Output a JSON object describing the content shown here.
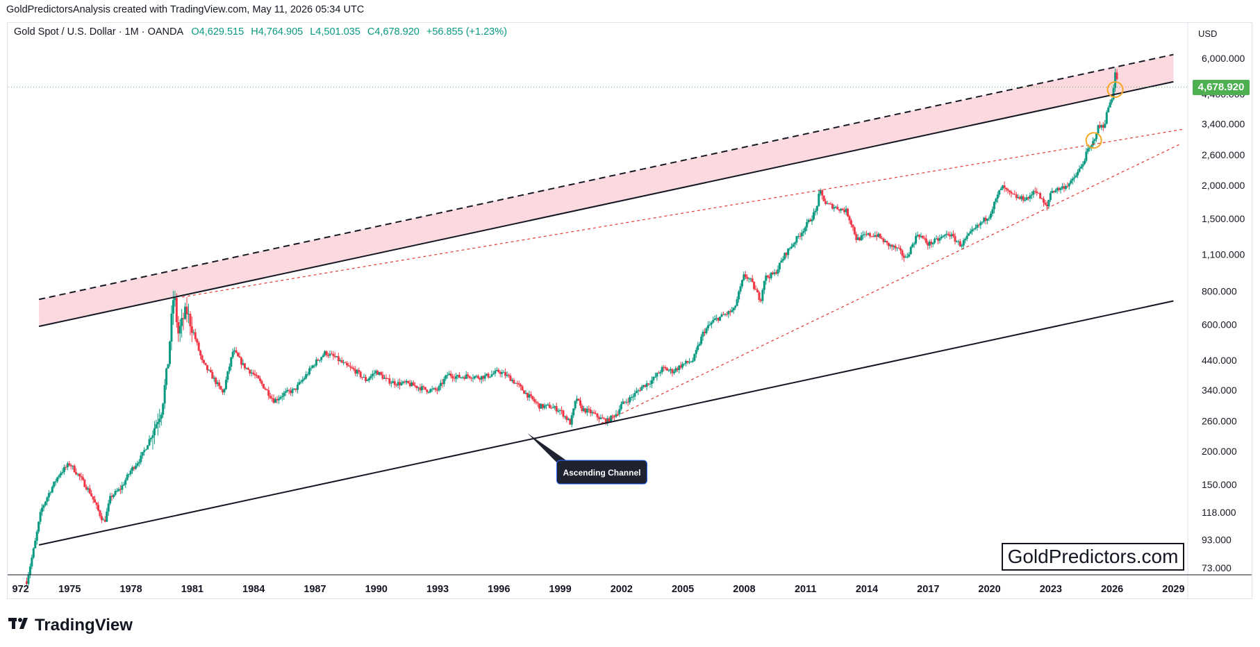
{
  "header": {
    "attribution": "GoldPredictorsAnalysis created with TradingView.com, May 11, 2026 05:34 UTC"
  },
  "legend": {
    "symbol": "Gold Spot / U.S. Dollar · 1M · OANDA",
    "open": "O4,629.515",
    "high": "H4,764.905",
    "low": "L4,501.035",
    "close": "C4,678.920",
    "change": "+56.855 (+1.23%)"
  },
  "price_scale": {
    "currency": "USD",
    "last_price": "4,678.920",
    "ticks": [
      "6,000.000",
      "4,400.000",
      "3,400.000",
      "2,600.000",
      "2,000.000",
      "1,500.000",
      "1,100.000",
      "800.000",
      "600.000",
      "440.000",
      "340.000",
      "260.000",
      "200.000",
      "150.000",
      "118.000",
      "93.000",
      "73.000"
    ]
  },
  "time_scale": {
    "ticks": [
      "972",
      "1975",
      "1978",
      "1981",
      "1984",
      "1987",
      "1990",
      "1993",
      "1996",
      "1999",
      "2002",
      "2005",
      "2008",
      "2011",
      "2014",
      "2017",
      "2020",
      "2023",
      "2026",
      "2029"
    ]
  },
  "annotation": {
    "callout": "Ascending Channel"
  },
  "watermark": "GoldPredictors.com",
  "brand": "TradingView",
  "colors": {
    "up": "#089981",
    "down": "#f23645",
    "candle": "#131722",
    "band": "#fcd9de",
    "trend_red": "#e53935",
    "circle": "#f5a623",
    "badge": "#4caf50"
  },
  "chart_data": {
    "type": "candlestick-line",
    "title": "Gold Spot / U.S. Dollar · 1M · OANDA",
    "xlabel": "",
    "ylabel": "",
    "y_scale": "log",
    "x_range": [
      1972,
      2029.7
    ],
    "y_range": [
      70,
      6500
    ],
    "last_price": 4678.92,
    "series": [
      {
        "name": "Gold Spot / U.S. Dollar",
        "points": [
          [
            1972.9,
            65
          ],
          [
            1973.3,
            90
          ],
          [
            1973.6,
            120
          ],
          [
            1974.0,
            140
          ],
          [
            1974.5,
            165
          ],
          [
            1975.0,
            180
          ],
          [
            1975.5,
            160
          ],
          [
            1976.0,
            140
          ],
          [
            1976.5,
            115
          ],
          [
            1976.7,
            108
          ],
          [
            1977.0,
            135
          ],
          [
            1977.5,
            145
          ],
          [
            1978.0,
            170
          ],
          [
            1978.5,
            190
          ],
          [
            1979.0,
            230
          ],
          [
            1979.5,
            290
          ],
          [
            1979.8,
            420
          ],
          [
            1980.0,
            650
          ],
          [
            1980.1,
            800
          ],
          [
            1980.3,
            550
          ],
          [
            1980.7,
            680
          ],
          [
            1981.0,
            580
          ],
          [
            1981.5,
            430
          ],
          [
            1982.0,
            380
          ],
          [
            1982.5,
            330
          ],
          [
            1983.0,
            480
          ],
          [
            1983.5,
            420
          ],
          [
            1984.0,
            390
          ],
          [
            1984.5,
            350
          ],
          [
            1985.0,
            310
          ],
          [
            1985.5,
            330
          ],
          [
            1986.0,
            340
          ],
          [
            1986.5,
            380
          ],
          [
            1987.0,
            430
          ],
          [
            1987.5,
            470
          ],
          [
            1988.0,
            450
          ],
          [
            1988.5,
            420
          ],
          [
            1989.0,
            400
          ],
          [
            1989.5,
            370
          ],
          [
            1990.0,
            400
          ],
          [
            1990.5,
            370
          ],
          [
            1991.0,
            360
          ],
          [
            1991.5,
            360
          ],
          [
            1992.0,
            350
          ],
          [
            1992.5,
            340
          ],
          [
            1993.0,
            340
          ],
          [
            1993.5,
            390
          ],
          [
            1994.0,
            380
          ],
          [
            1994.5,
            385
          ],
          [
            1995.0,
            380
          ],
          [
            1995.5,
            385
          ],
          [
            1996.0,
            400
          ],
          [
            1996.5,
            380
          ],
          [
            1997.0,
            350
          ],
          [
            1997.5,
            320
          ],
          [
            1998.0,
            295
          ],
          [
            1998.5,
            295
          ],
          [
            1999.0,
            285
          ],
          [
            1999.5,
            255
          ],
          [
            1999.8,
            320
          ],
          [
            2000.0,
            290
          ],
          [
            2000.5,
            280
          ],
          [
            2001.0,
            265
          ],
          [
            2001.3,
            260
          ],
          [
            2001.8,
            280
          ],
          [
            2002.0,
            300
          ],
          [
            2002.5,
            320
          ],
          [
            2003.0,
            350
          ],
          [
            2003.5,
            370
          ],
          [
            2004.0,
            410
          ],
          [
            2004.5,
            400
          ],
          [
            2005.0,
            425
          ],
          [
            2005.5,
            440
          ],
          [
            2006.0,
            560
          ],
          [
            2006.5,
            620
          ],
          [
            2007.0,
            650
          ],
          [
            2007.5,
            680
          ],
          [
            2008.0,
            920
          ],
          [
            2008.3,
            880
          ],
          [
            2008.8,
            740
          ],
          [
            2009.0,
            900
          ],
          [
            2009.5,
            930
          ],
          [
            2010.0,
            1100
          ],
          [
            2010.5,
            1240
          ],
          [
            2011.0,
            1400
          ],
          [
            2011.5,
            1600
          ],
          [
            2011.7,
            1900
          ],
          [
            2012.0,
            1700
          ],
          [
            2012.5,
            1650
          ],
          [
            2013.0,
            1600
          ],
          [
            2013.3,
            1400
          ],
          [
            2013.5,
            1250
          ],
          [
            2014.0,
            1300
          ],
          [
            2014.5,
            1300
          ],
          [
            2015.0,
            1200
          ],
          [
            2015.5,
            1150
          ],
          [
            2015.9,
            1060
          ],
          [
            2016.5,
            1320
          ],
          [
            2017.0,
            1200
          ],
          [
            2017.5,
            1250
          ],
          [
            2018.0,
            1320
          ],
          [
            2018.6,
            1190
          ],
          [
            2019.0,
            1300
          ],
          [
            2019.5,
            1420
          ],
          [
            2020.0,
            1550
          ],
          [
            2020.6,
            1980
          ],
          [
            2021.0,
            1850
          ],
          [
            2021.5,
            1780
          ],
          [
            2022.0,
            1800
          ],
          [
            2022.2,
            1950
          ],
          [
            2022.8,
            1640
          ],
          [
            2023.0,
            1900
          ],
          [
            2023.5,
            1950
          ],
          [
            2024.0,
            2050
          ],
          [
            2024.5,
            2350
          ],
          [
            2024.8,
            2700
          ],
          [
            2025.0,
            2800
          ],
          [
            2025.3,
            3300
          ],
          [
            2025.6,
            3350
          ],
          [
            2025.8,
            3900
          ],
          [
            2026.0,
            4300
          ],
          [
            2026.15,
            5300
          ],
          [
            2026.3,
            4700
          ]
        ]
      }
    ],
    "trendlines": [
      {
        "style": "black-solid",
        "from": [
          1973.5,
          89
        ],
        "to": [
          2029.0,
          735
        ]
      },
      {
        "style": "black-solid",
        "from": [
          1973.5,
          590
        ],
        "to": [
          2029.0,
          4900
        ]
      },
      {
        "style": "black-dashed",
        "from": [
          1973.5,
          745
        ],
        "to": [
          2029.0,
          6200
        ]
      },
      {
        "style": "red-dashed",
        "from": [
          1980.5,
          760
        ],
        "to": [
          2029.5,
          3250
        ]
      },
      {
        "style": "red-dashed",
        "from": [
          2001.0,
          255
        ],
        "to": [
          2029.3,
          2850
        ]
      }
    ],
    "band": {
      "upper": [
        [
          1973.5,
          745
        ],
        [
          2029.0,
          6200
        ]
      ],
      "lower": [
        [
          1973.5,
          590
        ],
        [
          2029.0,
          4900
        ]
      ]
    },
    "markers": [
      {
        "x": 2025.1,
        "y": 2950
      },
      {
        "x": 2026.15,
        "y": 4580
      }
    ],
    "callout_anchor": [
      1997.4,
      234
    ]
  }
}
